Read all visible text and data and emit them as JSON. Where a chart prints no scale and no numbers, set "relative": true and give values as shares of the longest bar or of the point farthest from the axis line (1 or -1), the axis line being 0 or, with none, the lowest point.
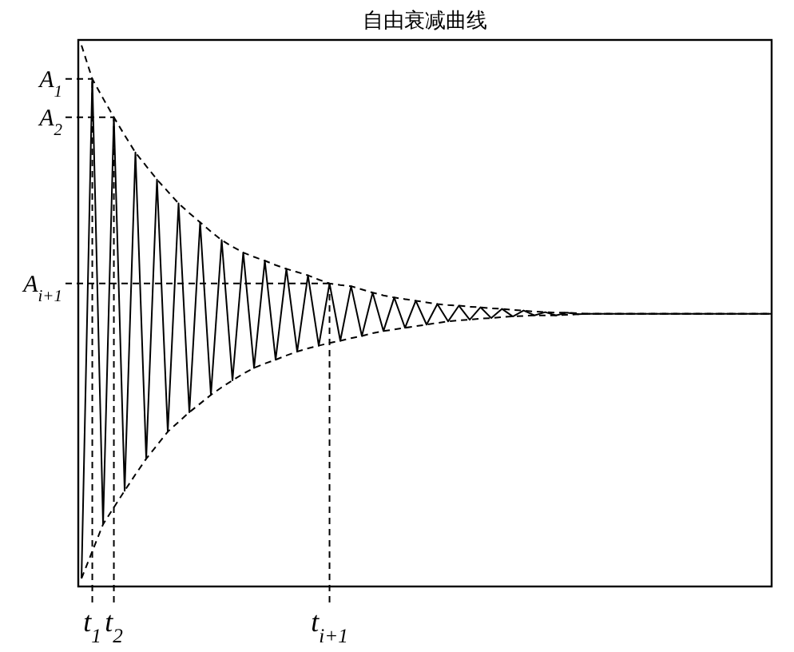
{
  "chart_data": {
    "type": "line",
    "title": "自由衰减曲线",
    "relative": true,
    "categories": [
      null,
      "t$_{1}$",
      null,
      "t$_{2}$",
      null,
      null,
      null,
      null,
      null,
      null,
      null,
      null,
      null,
      null,
      null,
      null,
      null,
      null,
      null,
      null,
      null,
      null,
      null,
      "t$_{i+1}$",
      null,
      null,
      null,
      null,
      null,
      null,
      null,
      null,
      null,
      null,
      null,
      null,
      null,
      null,
      null,
      null,
      null,
      null,
      null,
      null,
      null,
      null,
      null,
      null,
      null,
      null,
      null,
      null,
      null,
      null,
      null,
      null,
      null,
      null,
      null,
      null,
      null,
      null,
      null,
      null,
      null
    ],
    "series": [
      {
        "color": "#000000",
        "line_style": "solid",
        "values": [
          0.015,
          0.938,
          0.115,
          0.867,
          0.177,
          0.802,
          0.236,
          0.752,
          0.286,
          0.708,
          0.322,
          0.673,
          0.354,
          0.64,
          0.381,
          0.617,
          0.404,
          0.602,
          0.419,
          0.587,
          0.434,
          0.575,
          0.445,
          0.56,
          0.454,
          0.555,
          0.463,
          0.543,
          0.472,
          0.534,
          0.478,
          0.528,
          0.484,
          0.522,
          0.49,
          0.519,
          0.493,
          0.516,
          0.496,
          0.513,
          0.499,
          0.51,
          0.501,
          0.507,
          0.501,
          0.506,
          0.503,
          0.504,
          0.504,
          0.504,
          0.504,
          0.504,
          0.504,
          0.504,
          0.504,
          0.504,
          0.504,
          0.504,
          0.504,
          0.504,
          0.504,
          0.504,
          0.504,
          0.504,
          0.504
        ]
      },
      {
        "color": "#000000",
        "line_style": "dashed",
        "values": [
          1,
          0.938,
          0.902,
          0.867,
          0.834,
          0.802,
          0.777,
          0.752,
          0.73,
          0.708,
          0.69,
          0.673,
          0.656,
          0.64,
          0.628,
          0.617,
          0.609,
          0.602,
          0.594,
          0.587,
          0.581,
          0.575,
          0.567,
          0.56,
          0.557,
          0.555,
          0.549,
          0.543,
          0.538,
          0.534,
          0.531,
          0.528,
          0.525,
          0.522,
          0.52,
          0.519,
          0.517,
          0.516,
          0.514,
          0.513,
          0.511,
          0.51,
          0.508,
          0.507,
          0.506,
          0.506,
          0.505,
          0.504,
          0.504,
          0.504,
          0.504,
          0.504,
          0.504,
          0.504,
          0.504,
          0.504,
          0.504,
          0.504,
          0.504,
          0.504,
          0.504,
          0.504,
          0.504,
          0.504,
          0.504
        ]
      },
      {
        "color": "#000000",
        "line_style": "dashed",
        "values": [
          0.015,
          0.065,
          0.115,
          0.146,
          0.177,
          0.207,
          0.236,
          0.261,
          0.286,
          0.304,
          0.322,
          0.338,
          0.354,
          0.368,
          0.381,
          0.393,
          0.404,
          0.412,
          0.419,
          0.427,
          0.434,
          0.44,
          0.445,
          0.45,
          0.454,
          0.459,
          0.463,
          0.468,
          0.472,
          0.475,
          0.478,
          0.481,
          0.484,
          0.487,
          0.49,
          0.492,
          0.493,
          0.495,
          0.496,
          0.498,
          0.499,
          0.5,
          0.501,
          0.501,
          0.501,
          0.502,
          0.503,
          0.504,
          0.504,
          0.504,
          0.504,
          0.504,
          0.504,
          0.504,
          0.504,
          0.504,
          0.504,
          0.504,
          0.504,
          0.504,
          0.504,
          0.504,
          0.504,
          0.504,
          0.504
        ]
      }
    ],
    "ref_lines": [
      {
        "axis": "y",
        "value": 0.938,
        "label": "A$_{1}$",
        "line_style": "dashed"
      },
      {
        "axis": "y",
        "value": 0.867,
        "label": "A$_{2}$",
        "line_style": "dashed"
      },
      {
        "axis": "y",
        "value": 0.56,
        "label": "A$_{i+1}$",
        "line_style": "dashed"
      },
      {
        "axis": "x",
        "value": "t$_{1}$",
        "line_style": "dashed"
      },
      {
        "axis": "x",
        "value": "t$_{2}$",
        "line_style": "dashed"
      },
      {
        "axis": "x",
        "value": "t$_{i+1}$",
        "line_style": "dashed"
      }
    ]
  }
}
